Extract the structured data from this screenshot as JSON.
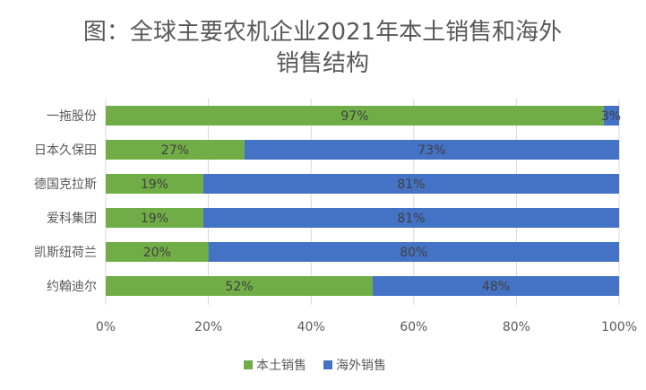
{
  "chart_data": {
    "type": "bar",
    "orientation": "horizontal",
    "stacked": true,
    "title_line1": "图：全球主要农机企业2021年本土销售和海外",
    "title_line2": "销售结构",
    "categories": [
      "一拖股份",
      "日本久保田",
      "德国克拉斯",
      "爱科集团",
      "凯斯纽荷兰",
      "约翰迪尔"
    ],
    "series": [
      {
        "name": "本土销售",
        "color": "#70AD47",
        "values": [
          97,
          27,
          19,
          19,
          20,
          52
        ],
        "labels": [
          "97%",
          "27%",
          "19%",
          "19%",
          "20%",
          "52%"
        ]
      },
      {
        "name": "海外销售",
        "color": "#4472C4",
        "values": [
          3,
          73,
          81,
          81,
          80,
          48
        ],
        "labels": [
          "3%",
          "73%",
          "81%",
          "81%",
          "80%",
          "48%"
        ]
      }
    ],
    "xlim": [
      0,
      100
    ],
    "x_ticks": [
      "0%",
      "20%",
      "40%",
      "60%",
      "80%",
      "100%"
    ],
    "grid": true,
    "legend_position": "bottom"
  }
}
